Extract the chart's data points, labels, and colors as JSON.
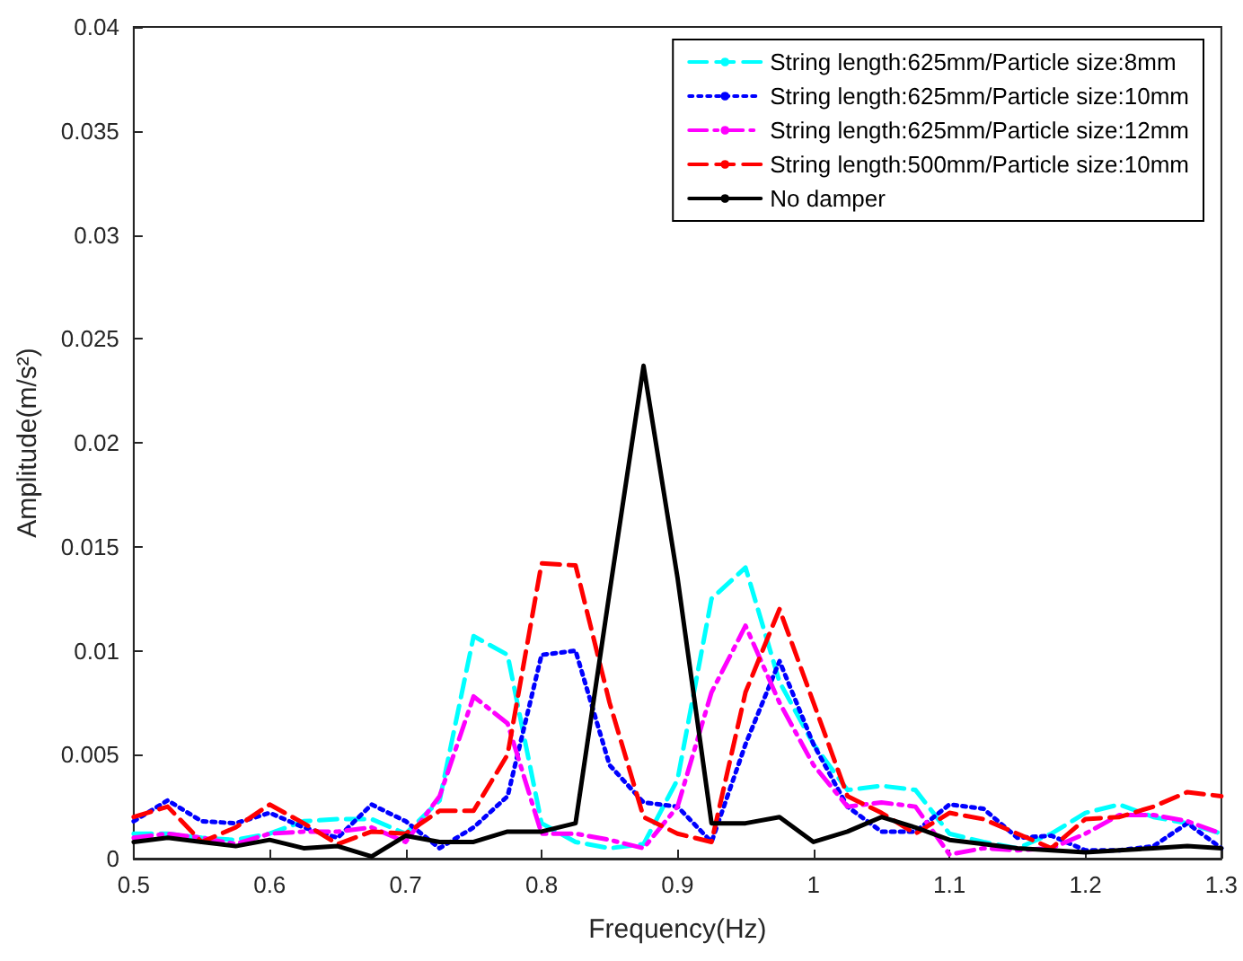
{
  "chart_data": {
    "type": "line",
    "xlabel": "Frequency(Hz)",
    "ylabel": "Amplitude(m/s²)",
    "x": [
      0.5,
      0.525,
      0.55,
      0.575,
      0.6,
      0.625,
      0.65,
      0.675,
      0.7,
      0.725,
      0.75,
      0.775,
      0.8,
      0.825,
      0.85,
      0.875,
      0.9,
      0.925,
      0.95,
      0.975,
      1.0,
      1.025,
      1.05,
      1.075,
      1.1,
      1.125,
      1.15,
      1.175,
      1.2,
      1.225,
      1.25,
      1.275,
      1.3
    ],
    "series": [
      {
        "name": "String length:625mm/Particle size:8mm",
        "color": "#00ffff",
        "line_style": "dashed",
        "values": [
          0.0012,
          0.0012,
          0.001,
          0.0009,
          0.0012,
          0.0018,
          0.0019,
          0.0019,
          0.0012,
          0.0028,
          0.0107,
          0.0098,
          0.0017,
          0.0008,
          0.0005,
          0.0007,
          0.0038,
          0.0125,
          0.014,
          0.0085,
          0.0055,
          0.0033,
          0.0035,
          0.0033,
          0.0012,
          0.0008,
          0.0005,
          0.0012,
          0.0022,
          0.0026,
          0.002,
          0.0017,
          0.0012
        ]
      },
      {
        "name": "String length:625mm/Particle size:10mm",
        "color": "#0000ff",
        "line_style": "dotted",
        "values": [
          0.0018,
          0.0028,
          0.0018,
          0.0017,
          0.0022,
          0.0015,
          0.001,
          0.0026,
          0.0018,
          0.0005,
          0.0015,
          0.003,
          0.0098,
          0.01,
          0.0045,
          0.0027,
          0.0025,
          0.0008,
          0.0055,
          0.0095,
          0.0055,
          0.0025,
          0.0013,
          0.0013,
          0.0026,
          0.0024,
          0.001,
          0.0011,
          0.0004,
          0.0004,
          0.0006,
          0.0017,
          0.0005
        ]
      },
      {
        "name": "String length:625mm/Particle size:12mm",
        "color": "#ff00ff",
        "line_style": "dashdot",
        "values": [
          0.001,
          0.0012,
          0.001,
          0.0007,
          0.0012,
          0.0013,
          0.0013,
          0.0015,
          0.0008,
          0.003,
          0.0078,
          0.0065,
          0.0012,
          0.0012,
          0.0009,
          0.0005,
          0.0025,
          0.008,
          0.0112,
          0.0075,
          0.0045,
          0.0025,
          0.0027,
          0.0025,
          0.0002,
          0.0005,
          0.0004,
          0.0005,
          0.0012,
          0.0021,
          0.0021,
          0.0018,
          0.0012
        ]
      },
      {
        "name": "String length:500mm/Particle size:10mm",
        "color": "#ff0000",
        "line_style": "dashed",
        "values": [
          0.002,
          0.0025,
          0.0008,
          0.0015,
          0.0026,
          0.0017,
          0.0007,
          0.0013,
          0.0012,
          0.0023,
          0.0023,
          0.005,
          0.0142,
          0.0141,
          0.0075,
          0.002,
          0.0012,
          0.0008,
          0.008,
          0.012,
          0.0075,
          0.003,
          0.0022,
          0.0012,
          0.0022,
          0.0019,
          0.0012,
          0.0005,
          0.0019,
          0.002,
          0.0025,
          0.0032,
          0.003
        ]
      },
      {
        "name": "No damper",
        "color": "#000000",
        "line_style": "solid",
        "values": [
          0.0008,
          0.001,
          0.0008,
          0.0006,
          0.0009,
          0.0005,
          0.0006,
          0.0001,
          0.0011,
          0.0008,
          0.0008,
          0.0013,
          0.0013,
          0.0017,
          0.0128,
          0.0237,
          0.0135,
          0.0017,
          0.0017,
          0.002,
          0.0008,
          0.0013,
          0.002,
          0.0015,
          0.0009,
          0.0007,
          0.0005,
          0.0004,
          0.0003,
          0.0004,
          0.0005,
          0.0006,
          0.0005
        ]
      }
    ],
    "xlim": [
      0.5,
      1.3
    ],
    "xticks": [
      0.5,
      0.6,
      0.7,
      0.8,
      0.9,
      1,
      1.1,
      1.2,
      1.3
    ],
    "ylim": [
      0,
      0.04
    ],
    "yticks": [
      0,
      0.005,
      0.01,
      0.015,
      0.02,
      0.025,
      0.03,
      0.035,
      0.04
    ],
    "grid": false,
    "legend": "top right",
    "marker": "none"
  }
}
